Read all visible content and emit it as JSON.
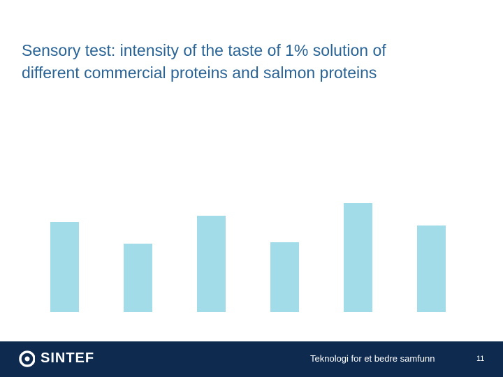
{
  "chart_data": {
    "type": "bar",
    "title": "Sensory test: intensity of the taste of 1% solution of\ndifferent commercial proteins and salmon proteins",
    "categories": [
      null,
      null,
      null,
      null,
      null,
      null
    ],
    "values": [
      129,
      98,
      138,
      100,
      156,
      124
    ],
    "color": "#a2dce8",
    "ylim": [
      0,
      160
    ]
  },
  "footer": {
    "logo": "SINTEF",
    "tagline": "Teknologi for et bedre samfunn",
    "page_number": "11"
  }
}
